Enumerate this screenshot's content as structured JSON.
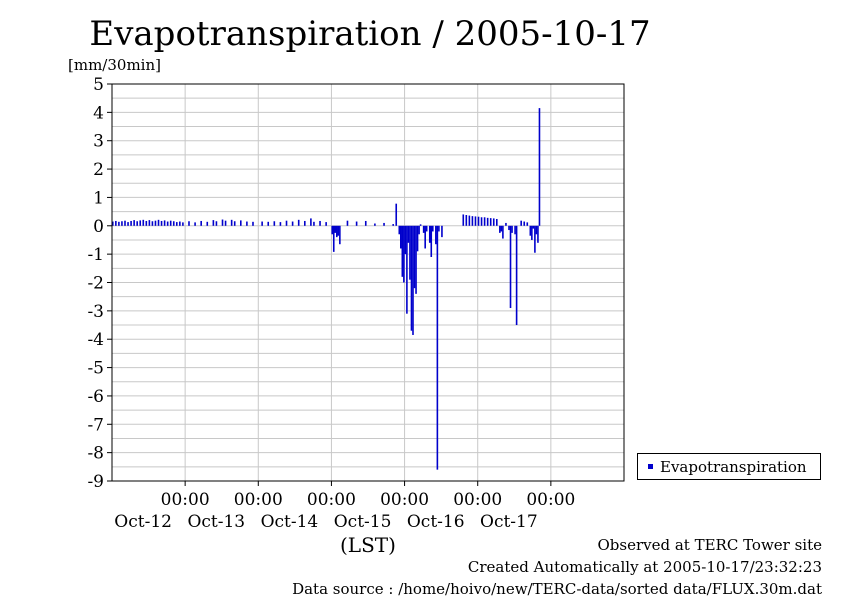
{
  "chart_data": {
    "type": "bar",
    "title": "Evapotranspiration / 2005-10-17",
    "ylabel": "[mm/30min]",
    "xlabel": "(LST)",
    "ylim": [
      -9,
      5
    ],
    "yticks": [
      5,
      4,
      3,
      2,
      1,
      0,
      -1,
      -2,
      -3,
      -4,
      -5,
      -6,
      -7,
      -8,
      -9
    ],
    "x_start": "2005-10-11 00:00",
    "x_end": "2005-10-18 00:00",
    "xticks": [
      {
        "time": "00:00",
        "date": "Oct-12"
      },
      {
        "time": "00:00",
        "date": "Oct-13"
      },
      {
        "time": "00:00",
        "date": "Oct-14"
      },
      {
        "time": "00:00",
        "date": "Oct-15"
      },
      {
        "time": "00:00",
        "date": "Oct-16"
      },
      {
        "time": "00:00",
        "date": "Oct-17"
      }
    ],
    "grid": true,
    "legend_position": "right",
    "series": [
      {
        "name": "Evapotranspiration",
        "color": "#0000cc",
        "points": [
          [
            "2005-10-11 00:00",
            0.15
          ],
          [
            "2005-10-11 01:00",
            0.17
          ],
          [
            "2005-10-11 02:00",
            0.14
          ],
          [
            "2005-10-11 03:00",
            0.16
          ],
          [
            "2005-10-11 04:00",
            0.18
          ],
          [
            "2005-10-11 05:00",
            0.13
          ],
          [
            "2005-10-11 06:00",
            0.17
          ],
          [
            "2005-10-11 07:00",
            0.2
          ],
          [
            "2005-10-11 08:00",
            0.16
          ],
          [
            "2005-10-11 09:00",
            0.19
          ],
          [
            "2005-10-11 10:00",
            0.21
          ],
          [
            "2005-10-11 11:00",
            0.17
          ],
          [
            "2005-10-11 12:00",
            0.2
          ],
          [
            "2005-10-11 13:00",
            0.16
          ],
          [
            "2005-10-11 14:00",
            0.18
          ],
          [
            "2005-10-11 15:00",
            0.21
          ],
          [
            "2005-10-11 16:00",
            0.17
          ],
          [
            "2005-10-11 17:00",
            0.19
          ],
          [
            "2005-10-11 18:00",
            0.15
          ],
          [
            "2005-10-11 19:00",
            0.18
          ],
          [
            "2005-10-11 20:00",
            0.16
          ],
          [
            "2005-10-11 21:00",
            0.13
          ],
          [
            "2005-10-11 22:00",
            0.15
          ],
          [
            "2005-10-11 23:00",
            0.12
          ],
          [
            "2005-10-12 01:00",
            0.16
          ],
          [
            "2005-10-12 03:00",
            0.12
          ],
          [
            "2005-10-12 05:00",
            0.17
          ],
          [
            "2005-10-12 07:00",
            0.14
          ],
          [
            "2005-10-12 09:00",
            0.2
          ],
          [
            "2005-10-12 10:00",
            0.16
          ],
          [
            "2005-10-12 12:00",
            0.22
          ],
          [
            "2005-10-12 13:00",
            0.18
          ],
          [
            "2005-10-12 15:00",
            0.21
          ],
          [
            "2005-10-12 16:00",
            0.16
          ],
          [
            "2005-10-12 18:00",
            0.19
          ],
          [
            "2005-10-12 20:00",
            0.15
          ],
          [
            "2005-10-12 22:00",
            0.14
          ],
          [
            "2005-10-13 01:00",
            0.15
          ],
          [
            "2005-10-13 03:00",
            0.14
          ],
          [
            "2005-10-13 05:00",
            0.16
          ],
          [
            "2005-10-13 07:00",
            0.13
          ],
          [
            "2005-10-13 09:00",
            0.18
          ],
          [
            "2005-10-13 11:00",
            0.15
          ],
          [
            "2005-10-13 13:00",
            0.21
          ],
          [
            "2005-10-13 15:00",
            0.17
          ],
          [
            "2005-10-13 17:00",
            0.26
          ],
          [
            "2005-10-13 18:00",
            0.14
          ],
          [
            "2005-10-13 20:00",
            0.17
          ],
          [
            "2005-10-13 22:00",
            0.13
          ],
          [
            "2005-10-14 00:00",
            -0.3
          ],
          [
            "2005-10-14 00:30",
            -0.92
          ],
          [
            "2005-10-14 01:00",
            -0.25
          ],
          [
            "2005-10-14 01:30",
            -0.4
          ],
          [
            "2005-10-14 02:00",
            -0.35
          ],
          [
            "2005-10-14 02:30",
            -0.65
          ],
          [
            "2005-10-14 05:00",
            0.18
          ],
          [
            "2005-10-14 08:00",
            0.15
          ],
          [
            "2005-10-14 11:00",
            0.17
          ],
          [
            "2005-10-14 14:00",
            0.08
          ],
          [
            "2005-10-14 17:00",
            0.1
          ],
          [
            "2005-10-14 20:00",
            0.06
          ],
          [
            "2005-10-14 21:00",
            0.78
          ],
          [
            "2005-10-14 22:00",
            -0.3
          ],
          [
            "2005-10-14 22:30",
            -0.8
          ],
          [
            "2005-10-14 23:00",
            -1.8
          ],
          [
            "2005-10-14 23:30",
            -2.0
          ],
          [
            "2005-10-15 00:00",
            -1.0
          ],
          [
            "2005-10-15 00:30",
            -3.1
          ],
          [
            "2005-10-15 01:00",
            -0.6
          ],
          [
            "2005-10-15 01:30",
            -1.9
          ],
          [
            "2005-10-15 02:00",
            -3.7
          ],
          [
            "2005-10-15 02:30",
            -3.85
          ],
          [
            "2005-10-15 03:00",
            -2.2
          ],
          [
            "2005-10-15 03:30",
            -2.4
          ],
          [
            "2005-10-15 04:00",
            -0.9
          ],
          [
            "2005-10-15 04:30",
            -0.3
          ],
          [
            "2005-10-15 05:00",
            0.05
          ],
          [
            "2005-10-15 06:00",
            -0.25
          ],
          [
            "2005-10-15 06:30",
            -0.8
          ],
          [
            "2005-10-15 07:00",
            -0.2
          ],
          [
            "2005-10-15 08:00",
            -0.6
          ],
          [
            "2005-10-15 08:30",
            -1.1
          ],
          [
            "2005-10-15 09:00",
            -0.2
          ],
          [
            "2005-10-15 10:00",
            -0.65
          ],
          [
            "2005-10-15 10:30",
            -8.6
          ],
          [
            "2005-10-15 11:00",
            -0.2
          ],
          [
            "2005-10-15 12:00",
            -0.4
          ],
          [
            "2005-10-15 19:00",
            0.4
          ],
          [
            "2005-10-15 20:00",
            0.38
          ],
          [
            "2005-10-15 21:00",
            0.36
          ],
          [
            "2005-10-15 22:00",
            0.34
          ],
          [
            "2005-10-15 23:00",
            0.33
          ],
          [
            "2005-10-16 00:00",
            0.32
          ],
          [
            "2005-10-16 01:00",
            0.3
          ],
          [
            "2005-10-16 02:00",
            0.3
          ],
          [
            "2005-10-16 03:00",
            0.28
          ],
          [
            "2005-10-16 04:00",
            0.27
          ],
          [
            "2005-10-16 05:00",
            0.26
          ],
          [
            "2005-10-16 06:00",
            0.24
          ],
          [
            "2005-10-16 07:00",
            -0.25
          ],
          [
            "2005-10-16 07:30",
            -0.2
          ],
          [
            "2005-10-16 08:00",
            -0.45
          ],
          [
            "2005-10-16 09:00",
            0.1
          ],
          [
            "2005-10-16 10:00",
            -0.15
          ],
          [
            "2005-10-16 10:30",
            -2.9
          ],
          [
            "2005-10-16 11:00",
            -0.25
          ],
          [
            "2005-10-16 12:00",
            -0.3
          ],
          [
            "2005-10-16 12:30",
            -3.5
          ],
          [
            "2005-10-16 14:00",
            0.18
          ],
          [
            "2005-10-16 15:00",
            0.15
          ],
          [
            "2005-10-16 16:00",
            0.12
          ],
          [
            "2005-10-16 17:00",
            -0.35
          ],
          [
            "2005-10-16 17:30",
            -0.5
          ],
          [
            "2005-10-16 18:00",
            -0.1
          ],
          [
            "2005-10-16 18:30",
            -0.95
          ],
          [
            "2005-10-16 19:00",
            -0.3
          ],
          [
            "2005-10-16 19:30",
            -0.6
          ],
          [
            "2005-10-16 20:00",
            4.15
          ]
        ]
      }
    ]
  },
  "footer": {
    "observed": "Observed at TERC Tower site",
    "created": "Created Automatically at 2005-10-17/23:32:23",
    "source": "Data source : /home/hoivo/new/TERC-data/sorted  data/FLUX.30m.dat"
  }
}
